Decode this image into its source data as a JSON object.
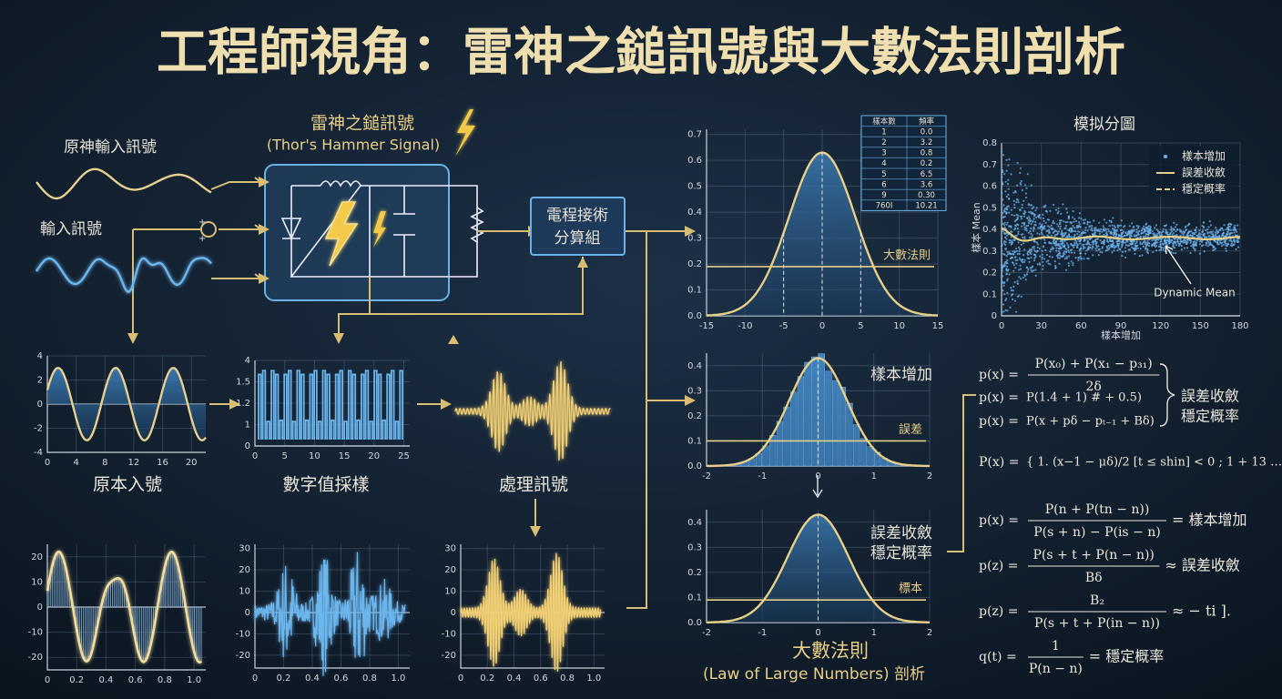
{
  "title": "工程師視角：雷神之鎚訊號與大數法則剖析",
  "circuit": {
    "title": "雷神之鎚訊號",
    "subtitle": "(Thor's Hammer Signal)",
    "input_top": "原神輸入訊號",
    "input_mid": "輸入訊號",
    "module": [
      "電程接術",
      "分算組"
    ]
  },
  "signal_panels": [
    {
      "label": "原本入號",
      "xlim": [
        0,
        22
      ],
      "ylim": [
        -4,
        4
      ],
      "xticks": [
        0,
        4,
        8,
        12,
        16,
        20
      ],
      "yticks": [
        -4,
        -2,
        0,
        2,
        4
      ]
    },
    {
      "label": "數字值採樣",
      "xlim": [
        0,
        26
      ],
      "ylim": [
        0,
        4
      ],
      "xticks": [
        0,
        5,
        10,
        15,
        20,
        25
      ],
      "ylabels": [
        "4",
        "1.5",
        "1.2",
        "1",
        "0"
      ]
    },
    {
      "label": "處理訊號"
    },
    {
      "xlim": [
        0,
        1.08
      ],
      "ylim": [
        -25,
        25
      ],
      "xticks": [
        0,
        0.2,
        0.4,
        0.6,
        0.8,
        {
          "value": 1,
          "label": "1.0"
        }
      ],
      "yticks": [
        -20,
        -10,
        0,
        10,
        20
      ]
    },
    {
      "xlim": [
        0,
        1.08
      ],
      "ylim": [
        -26,
        32
      ],
      "xticks": [
        0,
        0.2,
        0.4,
        0.6,
        0.8,
        {
          "value": 1,
          "label": "1.0"
        }
      ],
      "yticks": [
        -20,
        -10,
        0,
        10,
        20,
        30
      ]
    },
    {
      "xlim": [
        0,
        1.08
      ],
      "ylim": [
        -26,
        32
      ],
      "xticks": [
        0,
        0.2,
        0.4,
        0.6,
        0.8,
        {
          "value": 1,
          "label": "1.0"
        }
      ],
      "yticks": [
        -20,
        -10,
        0,
        10,
        20,
        30
      ]
    }
  ],
  "normal_charts": [
    {
      "xlim": [
        -15,
        15
      ],
      "ylim": [
        0,
        0.72
      ],
      "xticks": [
        -15,
        -10,
        -5,
        0,
        5,
        10,
        15
      ],
      "yticks": [
        {
          "value": 0,
          "label": "0.0"
        },
        0.1,
        0.2,
        0.3,
        0.4,
        0.5,
        0.6,
        0.7
      ],
      "line": 0.19,
      "line_label": "大數法則",
      "table": {
        "header": [
          "樣本數",
          "頻率"
        ],
        "rows": [
          [
            "1",
            "0.0"
          ],
          [
            "2",
            "3.2"
          ],
          [
            "3",
            "0.8"
          ],
          [
            "4",
            "0.2"
          ],
          [
            "5",
            "6.5"
          ],
          [
            "6",
            "3.6"
          ],
          [
            "9",
            "0.30"
          ],
          [
            "760I",
            "10.21"
          ]
        ]
      }
    },
    {
      "xlim": [
        -2,
        2
      ],
      "ylim": [
        0,
        0.45
      ],
      "xticks": [
        -2,
        -1,
        0,
        1,
        2
      ],
      "yticks": [
        {
          "value": 0,
          "label": "0.0"
        },
        0.1,
        0.2,
        0.3,
        0.4
      ],
      "line": 0.1,
      "line_label": "誤差",
      "side_text": [
        "樣本增加"
      ]
    },
    {
      "xlim": [
        -2,
        2
      ],
      "ylim": [
        0,
        0.45
      ],
      "xticks": [
        -2,
        -1,
        0,
        1,
        2
      ],
      "yticks": [
        {
          "value": 0,
          "label": "0.0"
        },
        0.1,
        0.2,
        0.3,
        0.4
      ],
      "line": 0.09,
      "line_label": "標本",
      "side_text": [
        "誤差收斂",
        "穩定概率"
      ]
    }
  ],
  "scatter": {
    "title": "模拟分圖",
    "xlabel": "樣本增加",
    "ylabel": "樣本 Mean",
    "xlim": [
      0,
      180
    ],
    "ylim": [
      0,
      0.8
    ],
    "xticks": [
      0,
      30,
      60,
      90,
      120,
      150,
      180
    ],
    "yticks": [
      0,
      0.1,
      0.2,
      0.3,
      0.4,
      0.5,
      0.6,
      0.7,
      0.8
    ],
    "legend": [
      "樣本增加",
      "誤差收斂",
      "穩定概率"
    ],
    "annotation": "Dynamic Mean"
  },
  "formulas": [
    {
      "lhs": "p(x) =",
      "num": "P(x₀) + P(x₁ − p₃₁)",
      "den": "2δ"
    },
    {
      "lhs": "p(x) =",
      "expr": "P(1.4 + 1)   # + 0.5)"
    },
    {
      "lhs": "p(x) =",
      "expr": "P(x + pδ − pₜ₋₁ + Bδ)"
    },
    {
      "lhs": "P(x) =",
      "expr": "{ 1. (x−1 − μδ)/2   [t ≤ shin]  < 0 ;  1 + 13 …, p(x − x = 1)"
    },
    {
      "lhs": "p(x) =",
      "num": "P(n + P(tn − n))",
      "den": "P(s + n) − P(is − n)",
      "rhs": "= 樣本增加"
    },
    {
      "lhs": "p(z) =",
      "num": "P(s + t + P(n − n))",
      "den": "Bδ",
      "rhs": "≈ 誤差收斂"
    },
    {
      "lhs": "p(z) =",
      "num": "B₂",
      "den": "P(s + t + P(in − n))",
      "rhs": "≈ − ti ]."
    },
    {
      "lhs": "q(t) =",
      "num": "1",
      "den": "P(n − n)",
      "rhs": "= 穩定概率"
    }
  ],
  "brace_text": [
    "誤差收斂",
    "穩定概率"
  ],
  "bottom_title": [
    "大數法則",
    "(Law of Large Numbers) 剖析"
  ]
}
